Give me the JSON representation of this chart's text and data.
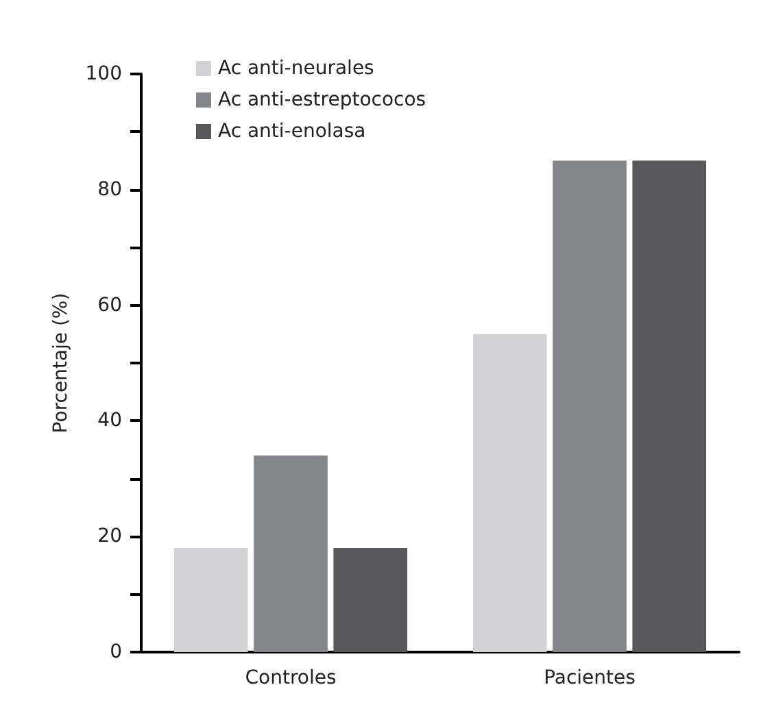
{
  "chart_data": {
    "type": "bar",
    "ylabel": "Porcentaje (%)",
    "categories": [
      "Controles",
      "Pacientes"
    ],
    "series": [
      {
        "name": "Ac anti-neurales",
        "color": "#d3d3d5",
        "values": [
          18,
          55
        ]
      },
      {
        "name": "Ac anti-estreptococos",
        "color": "#848589",
        "values": [
          34,
          85
        ]
      },
      {
        "name": "Ac anti-enolasa",
        "color": "#58585a",
        "values": [
          18,
          85
        ]
      }
    ],
    "ylim": [
      0,
      100
    ],
    "yticks": [
      0,
      20,
      40,
      60,
      80,
      100
    ],
    "grid": false,
    "legend": "top left"
  }
}
